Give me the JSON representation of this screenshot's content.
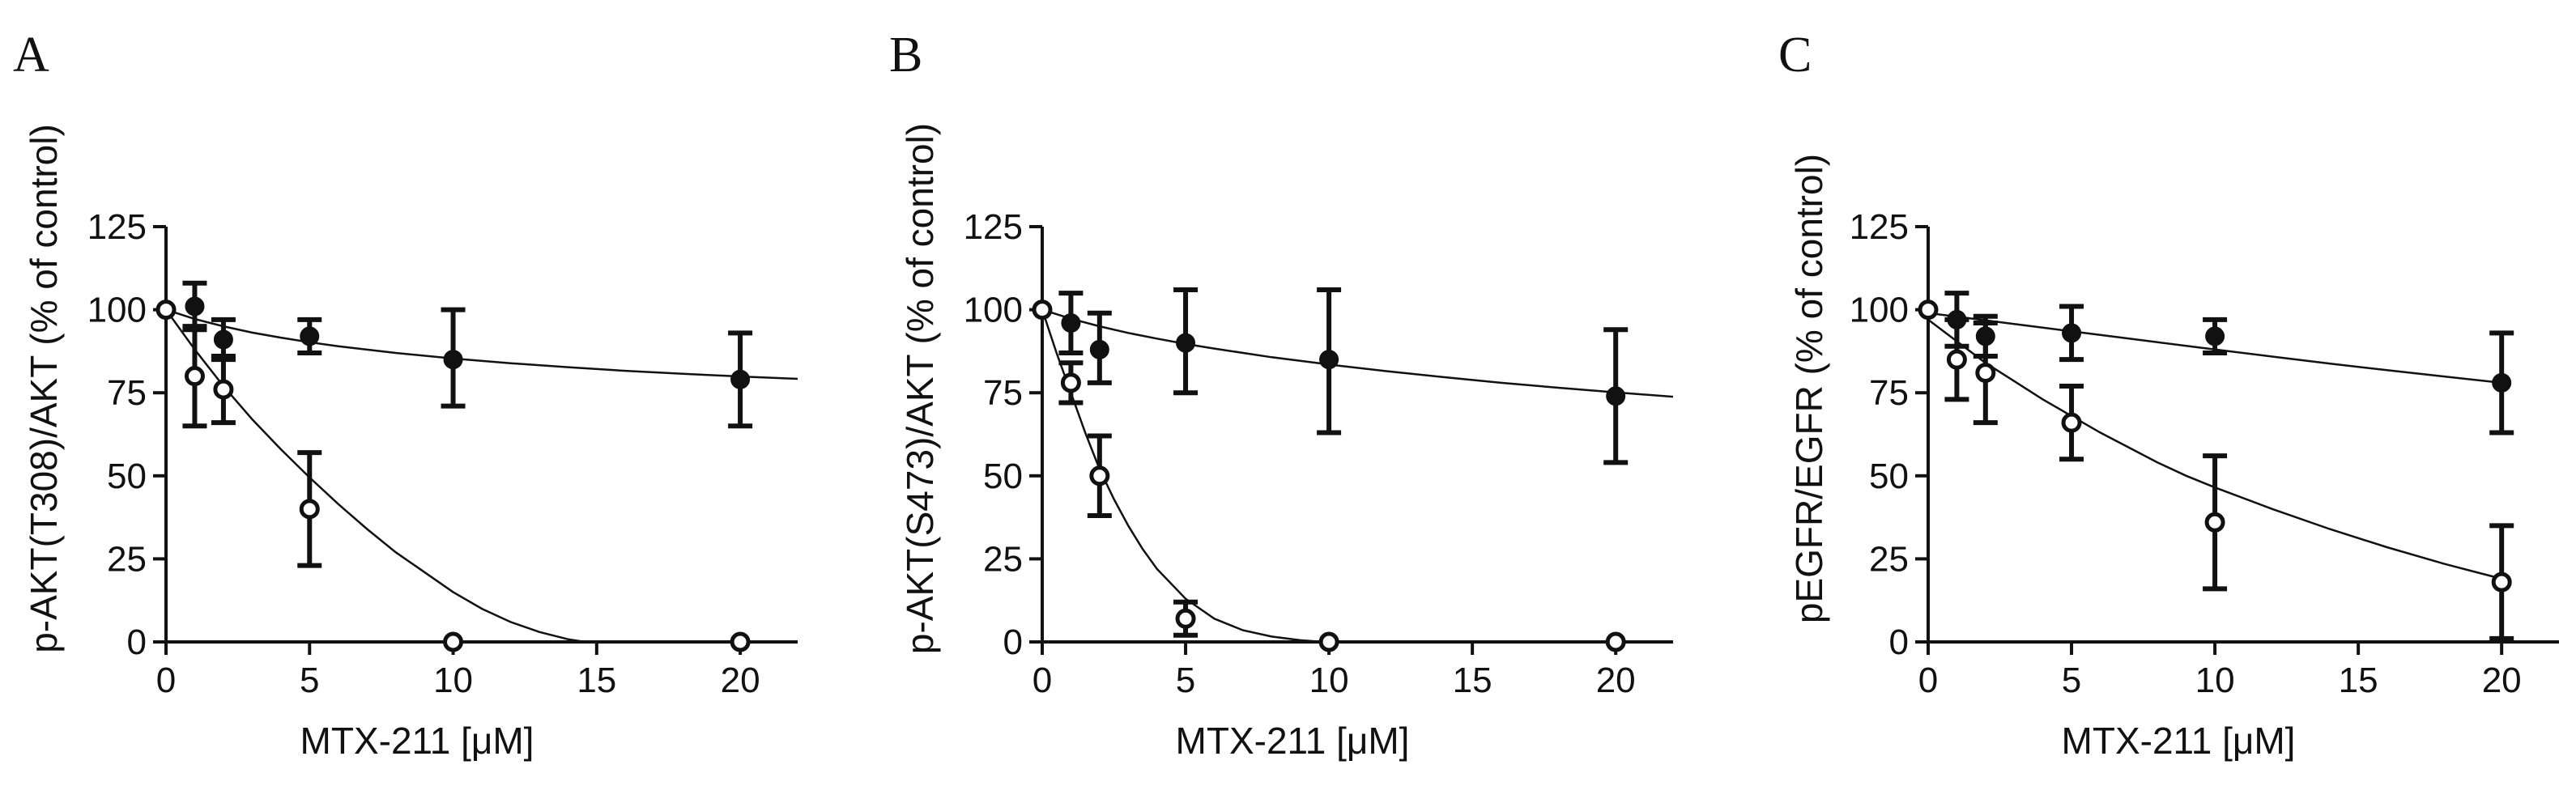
{
  "chart_data": [
    {
      "type": "scatter",
      "panel": "A",
      "xlabel": "MTX-211 [μM]",
      "ylabel": "p-AKT(T308)/AKT (% of control)",
      "xlim": [
        0,
        22
      ],
      "ylim": [
        0,
        125
      ],
      "xticks": [
        0,
        5,
        10,
        15,
        20
      ],
      "yticks": [
        0,
        25,
        50,
        75,
        100,
        125
      ],
      "xtick_labels": [
        "0",
        "5",
        "10",
        "15",
        "20"
      ],
      "ytick_labels": [
        "0",
        "25",
        "50",
        "75",
        "100",
        "125"
      ],
      "series": [
        {
          "name": "filled",
          "marker": "filled-circle",
          "x": [
            0,
            1,
            2,
            5,
            10,
            20
          ],
          "y": [
            100,
            101,
            91,
            92,
            85,
            79
          ],
          "err_low": [
            0,
            7,
            6,
            5,
            14,
            14
          ],
          "err_high": [
            0,
            7,
            6,
            5,
            15,
            14
          ],
          "fit": {
            "x": [
              0,
              1,
              2,
              3,
              4,
              5,
              6,
              8,
              10,
              12,
              14,
              16,
              18,
              20,
              22
            ],
            "y": [
              100,
              97.2,
              95,
              93.1,
              91.6,
              90.2,
              89,
              87,
              85.3,
              83.9,
              82.7,
              81.6,
              80.7,
              79.9,
              79.2
            ]
          }
        },
        {
          "name": "open",
          "marker": "open-circle",
          "x": [
            0,
            1,
            2,
            5,
            10,
            20
          ],
          "y": [
            100,
            80,
            76,
            40,
            0,
            0
          ],
          "err_low": [
            0,
            15,
            10,
            17,
            0,
            0
          ],
          "err_high": [
            0,
            15,
            10,
            17,
            0,
            0
          ],
          "fit": {
            "x": [
              0,
              1,
              2,
              3,
              4,
              5,
              6,
              7,
              8,
              9,
              10,
              11,
              12,
              13,
              14,
              14.6
            ],
            "y": [
              100,
              88,
              77,
              67,
              58,
              49.5,
              41.5,
              34,
              27,
              21,
              15,
              10,
              6,
              3,
              0.8,
              0
            ]
          }
        }
      ]
    },
    {
      "type": "scatter",
      "panel": "B",
      "xlabel": "MTX-211 [μM]",
      "ylabel": "p-AKT(S473)/AKT (% of control)",
      "xlim": [
        0,
        22
      ],
      "ylim": [
        0,
        125
      ],
      "xticks": [
        0,
        5,
        10,
        15,
        20
      ],
      "yticks": [
        0,
        25,
        50,
        75,
        100,
        125
      ],
      "xtick_labels": [
        "0",
        "5",
        "10",
        "15",
        "20"
      ],
      "ytick_labels": [
        "0",
        "25",
        "50",
        "75",
        "100",
        "125"
      ],
      "series": [
        {
          "name": "filled",
          "marker": "filled-circle",
          "x": [
            0,
            1,
            2,
            5,
            10,
            20
          ],
          "y": [
            100,
            96,
            88,
            90,
            85,
            74
          ],
          "err_low": [
            0,
            9,
            10,
            15,
            22,
            20
          ],
          "err_high": [
            0,
            9,
            11,
            16,
            21,
            20
          ],
          "fit": {
            "x": [
              0,
              1,
              2,
              3,
              4,
              5,
              6,
              8,
              10,
              12,
              14,
              16,
              18,
              20,
              22
            ],
            "y": [
              100,
              97.3,
              95,
              93,
              91.3,
              89.7,
              88.3,
              85.7,
              83.5,
              81.5,
              79.7,
              78,
              76.5,
              75.1,
              73.8
            ]
          }
        },
        {
          "name": "open",
          "marker": "open-circle",
          "x": [
            0,
            1,
            2,
            5,
            10,
            20
          ],
          "y": [
            100,
            78,
            50,
            7,
            0,
            0
          ],
          "err_low": [
            0,
            6,
            12,
            5,
            0,
            0
          ],
          "err_high": [
            0,
            6,
            12,
            5,
            0,
            0
          ],
          "fit": {
            "x": [
              0,
              0.5,
              1,
              1.5,
              2,
              2.5,
              3,
              3.5,
              4,
              5,
              6,
              7,
              8,
              9,
              9.8
            ],
            "y": [
              100,
              87,
              75,
              63,
              52,
              43,
              35,
              28,
              22,
              13,
              7,
              3.5,
              1.6,
              0.5,
              0
            ]
          }
        }
      ]
    },
    {
      "type": "scatter",
      "panel": "C",
      "xlabel": "MTX-211 [μM]",
      "ylabel": "pEGFR/EGFR (% of control)",
      "xlim": [
        0,
        22
      ],
      "ylim": [
        0,
        125
      ],
      "xticks": [
        0,
        5,
        10,
        15,
        20
      ],
      "yticks": [
        0,
        25,
        50,
        75,
        100,
        125
      ],
      "xtick_labels": [
        "0",
        "5",
        "10",
        "15",
        "20"
      ],
      "ytick_labels": [
        "0",
        "25",
        "50",
        "75",
        "100",
        "125"
      ],
      "series": [
        {
          "name": "filled",
          "marker": "filled-circle",
          "x": [
            0,
            1,
            2,
            5,
            10,
            20
          ],
          "y": [
            100,
            97,
            92,
            93,
            92,
            78
          ],
          "err_low": [
            0,
            8,
            6,
            8,
            5,
            15
          ],
          "err_high": [
            0,
            8,
            6,
            8,
            5,
            15
          ],
          "fit": {
            "x": [
              0,
              2,
              4,
              6,
              8,
              10,
              12,
              14,
              16,
              18,
              20
            ],
            "y": [
              99,
              96.8,
              94.6,
              92.4,
              90.2,
              88,
              85.9,
              83.8,
              81.8,
              79.9,
              78
            ]
          }
        },
        {
          "name": "open",
          "marker": "open-circle",
          "x": [
            0,
            1,
            2,
            5,
            10,
            20
          ],
          "y": [
            100,
            85,
            81,
            66,
            36,
            18
          ],
          "err_low": [
            0,
            12,
            15,
            11,
            20,
            17
          ],
          "err_high": [
            0,
            12,
            15,
            11,
            20,
            17
          ],
          "fit": {
            "x": [
              0,
              1,
              2,
              3,
              4,
              5,
              6,
              7,
              8,
              9,
              10,
              12,
              14,
              16,
              18,
              20
            ],
            "y": [
              97,
              90.5,
              84,
              78.5,
              73,
              68,
              63,
              58.5,
              54,
              50,
              46.5,
              40,
              34,
              28.5,
              23.5,
              19
            ]
          }
        }
      ]
    }
  ]
}
